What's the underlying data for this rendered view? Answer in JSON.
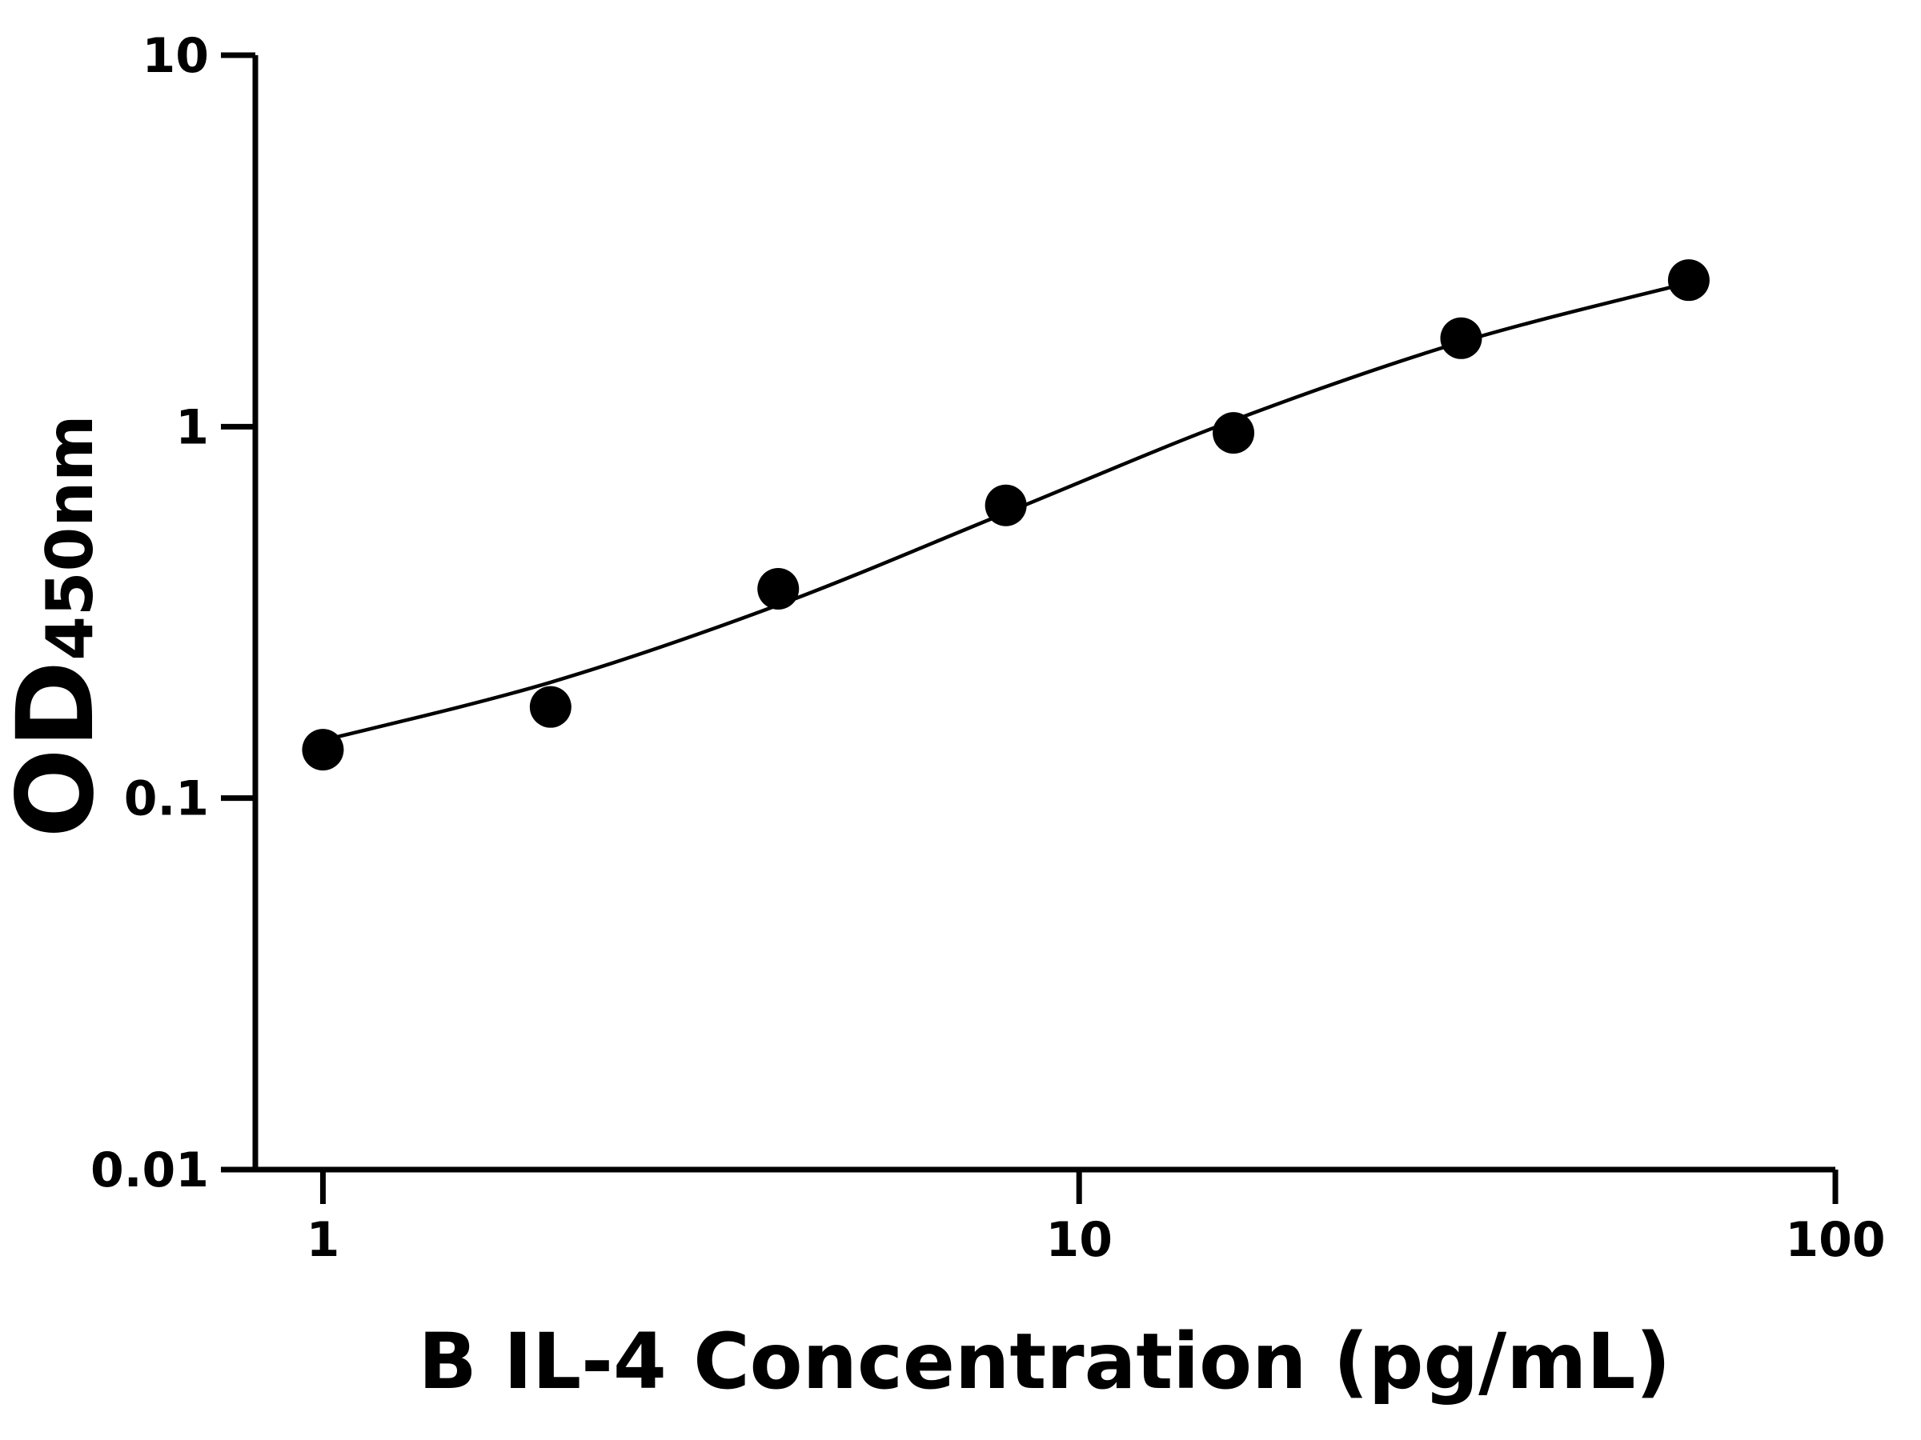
{
  "chart_data": {
    "type": "scatter",
    "x_label": "B IL-4 Concentration (pg/mL)",
    "y_label": {
      "main": "OD",
      "sub": "450nm"
    },
    "series": [
      {
        "x": [
          1,
          2,
          4,
          8,
          16,
          32,
          64
        ],
        "values": [
          0.135,
          0.176,
          0.366,
          0.614,
          0.962,
          1.73,
          2.48
        ],
        "color": "#000000"
      }
    ],
    "fit_curve": {
      "x": [
        1,
        2,
        4,
        8,
        16,
        32,
        64
      ],
      "values": [
        0.143,
        0.205,
        0.331,
        0.586,
        1.04,
        1.69,
        2.44
      ],
      "color": "#000000"
    },
    "xlim": [
      0.814,
      100
    ],
    "xticks": [
      1,
      10,
      100
    ],
    "xscale": "log",
    "ylim": [
      0.01,
      10
    ],
    "yticks": [
      0.01,
      0.1,
      1,
      10
    ],
    "yscale": "log",
    "grid": false
  }
}
